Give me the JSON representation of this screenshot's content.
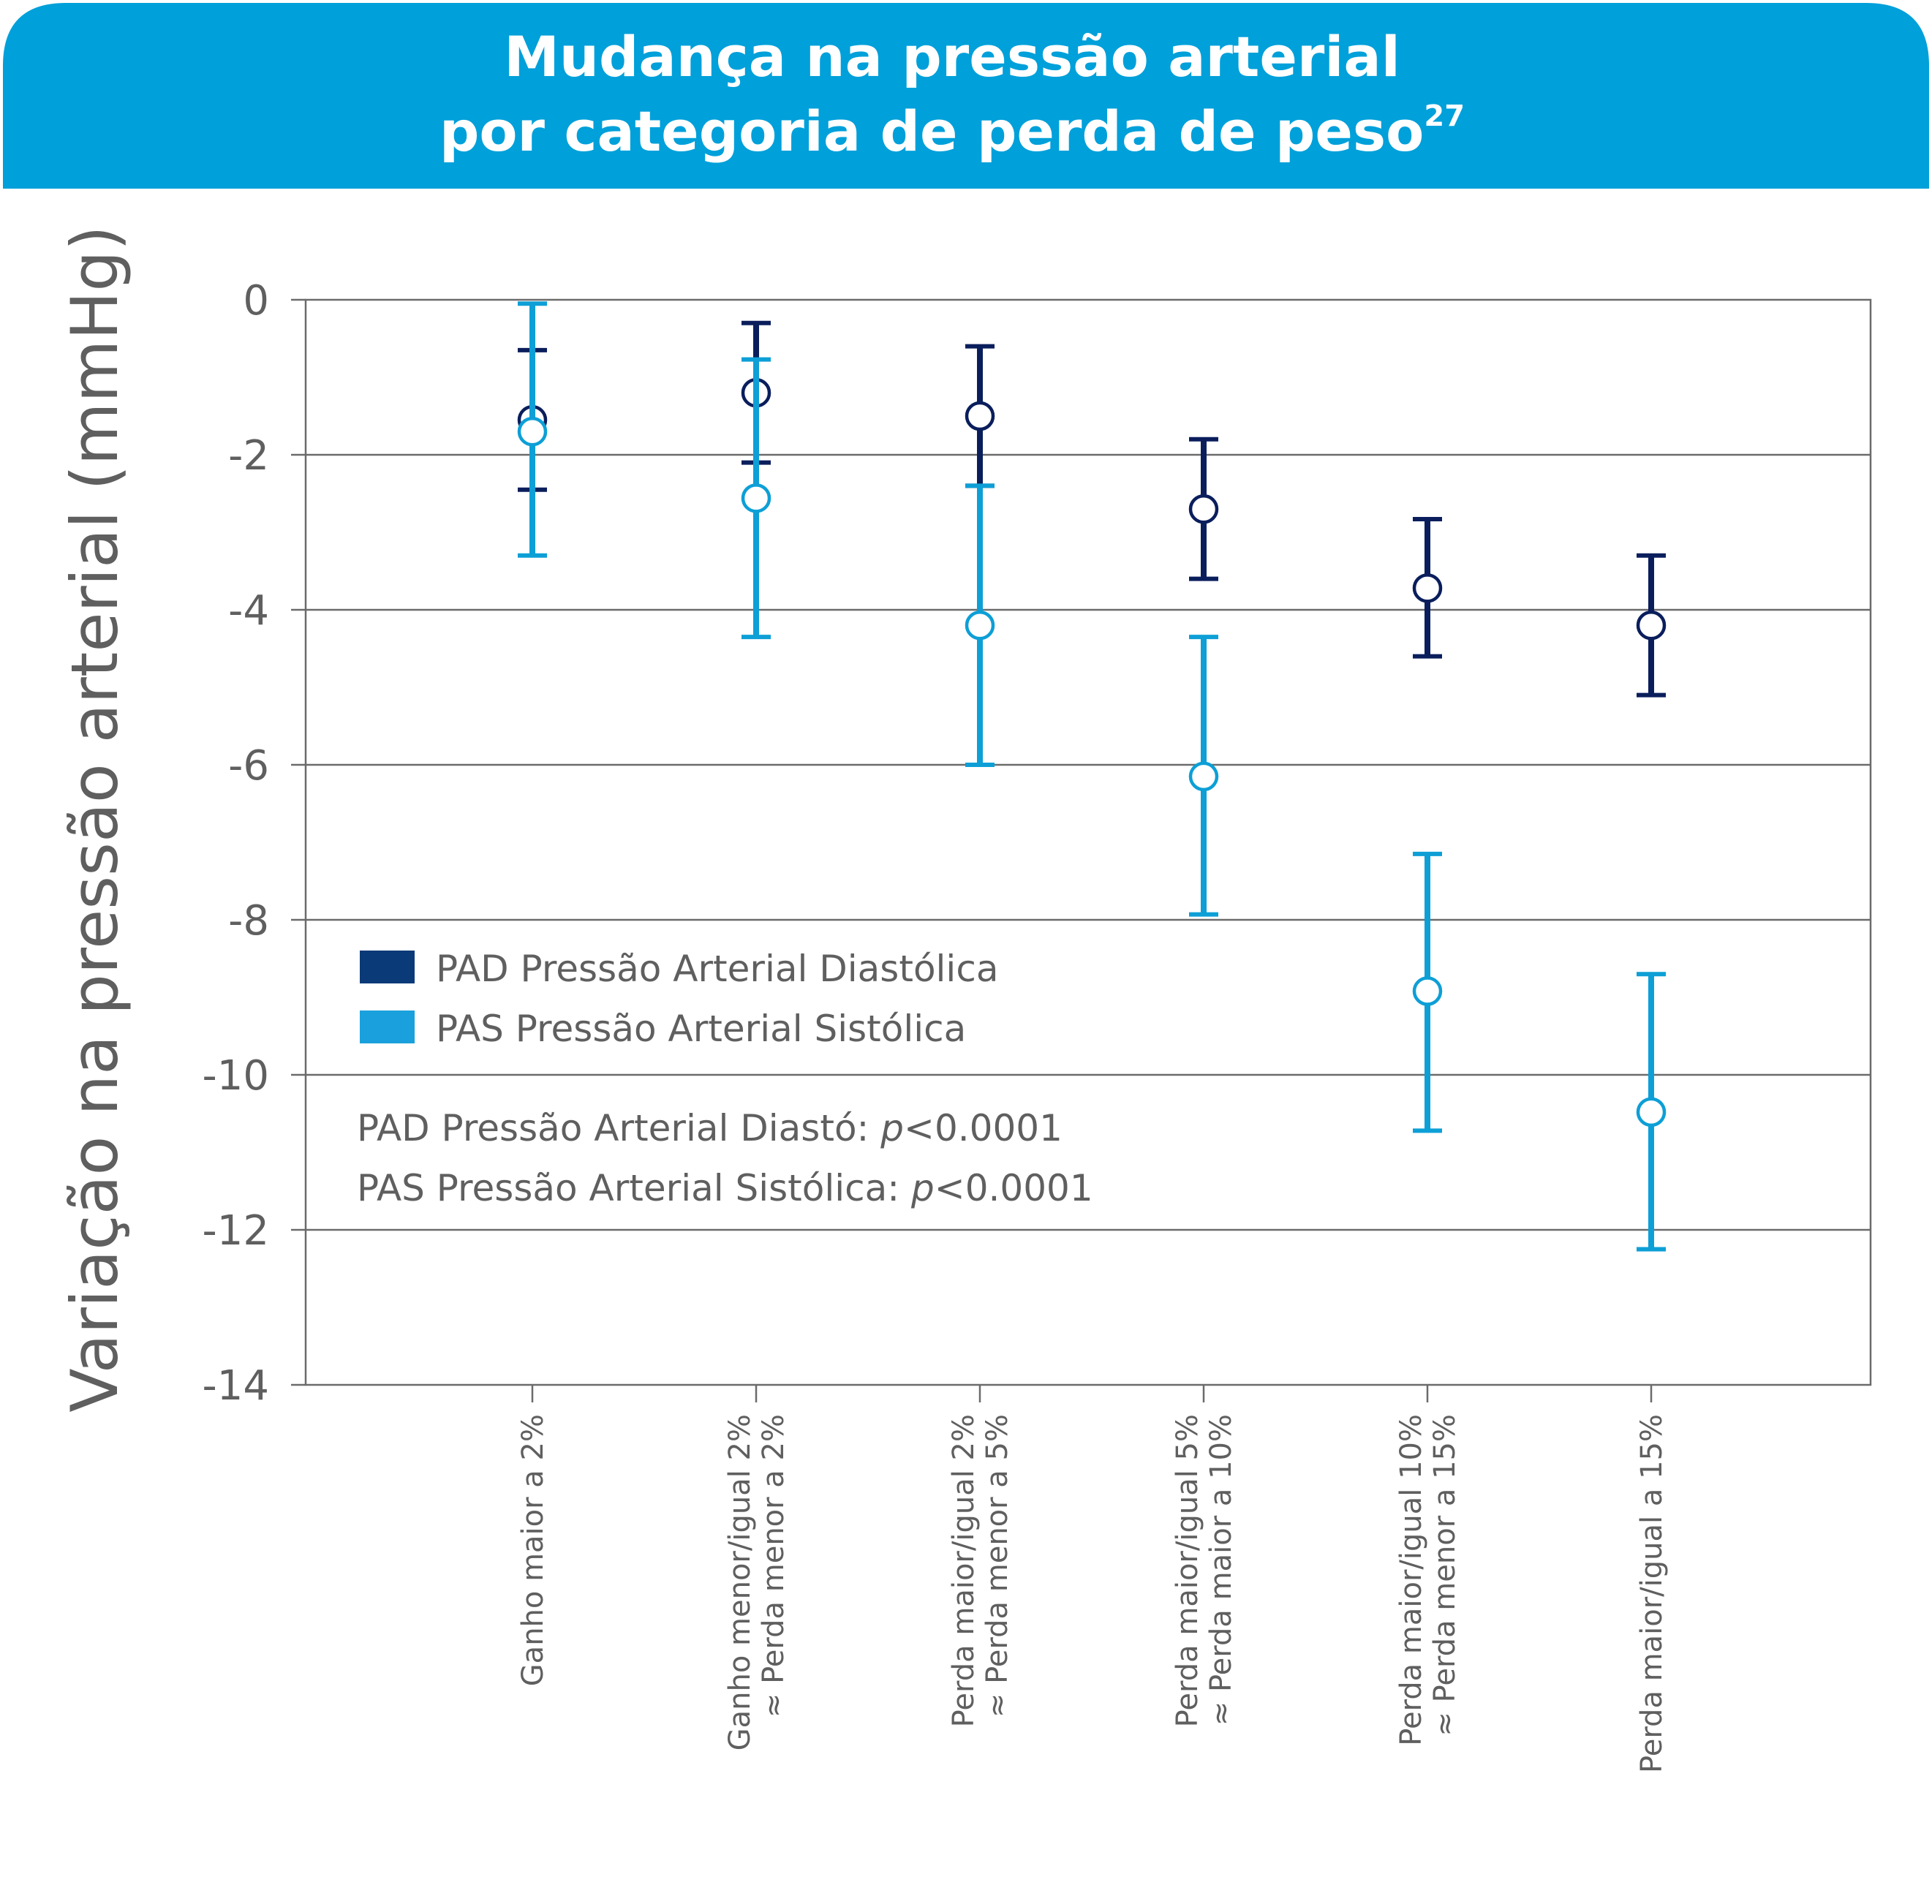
{
  "title": {
    "line1": "Mudança na pressão arterial",
    "line2": "por categoria de perda de peso",
    "superscript": "27"
  },
  "colors": {
    "banner": "#00a0da",
    "pad": "#0a1e5c",
    "pas": "#0d9fd6",
    "pad_legend": "#0b3a78",
    "pas_legend": "#1aa0dc",
    "grid": "#6b6b6b",
    "text": "#5f5f5f"
  },
  "legend": [
    {
      "key": "pad",
      "label": "PAD Pressão Arterial Diastólica"
    },
    {
      "key": "pas",
      "label": "PAS Pressão Arterial Sistólica"
    }
  ],
  "annotations": [
    {
      "prefix": "PAD Pressão Arterial Diastó: ",
      "p": "p",
      "suffix": "<0.0001"
    },
    {
      "prefix": "PAS Pressão Arterial Sistólica: ",
      "p": "p",
      "suffix": "<0.0001"
    }
  ],
  "chart_data": {
    "type": "scatter",
    "title": "Mudança na pressão arterial por categoria de perda de peso",
    "ylabel": "Variação na pressão arterial (mmHg)",
    "xlabel": "",
    "ylim": [
      -14,
      0
    ],
    "yticks": [
      "0",
      "-2",
      "-4",
      "-6",
      "-8",
      "-10",
      "-12",
      "-14"
    ],
    "grid": true,
    "legend_position": "inside-lower-left",
    "categories": [
      [
        "Ganho maior a 2%"
      ],
      [
        "Ganho menor/igual 2%",
        "≈ Perda menor a 2%"
      ],
      [
        "Perda maior/igual 2%",
        "≈ Perda menor a 5%"
      ],
      [
        "Perda maior/igual 5%",
        "≈ Perda maior a 10%"
      ],
      [
        "Perda maior/igual 10%",
        "≈ Perda menor a 15%"
      ],
      [
        "Perda maior/igual a 15%"
      ]
    ],
    "series": [
      {
        "name": "PAD Pressão Arterial Diastólica",
        "values": [
          -1.55,
          -1.2,
          -1.5,
          -2.7,
          -3.72,
          -4.2
        ],
        "lower": [
          -2.45,
          -2.1,
          -2.4,
          -3.6,
          -4.6,
          -5.1
        ],
        "upper": [
          -0.65,
          -0.3,
          -0.6,
          -1.8,
          -2.83,
          -3.3
        ]
      },
      {
        "name": "PAS Pressão Arterial Sistólica",
        "values": [
          -1.7,
          -2.56,
          -4.2,
          -6.15,
          -8.92,
          -10.48
        ],
        "lower": [
          -3.3,
          -4.35,
          -6.0,
          -7.93,
          -10.72,
          -12.25
        ],
        "upper": [
          -0.05,
          -0.77,
          -2.4,
          -4.35,
          -7.15,
          -8.7
        ]
      }
    ]
  }
}
